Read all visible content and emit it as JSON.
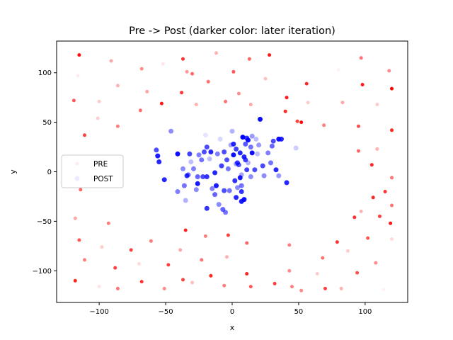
{
  "chart_data": {
    "type": "scatter",
    "title": "Pre -> Post (darker color: later iteration)",
    "xlabel": "x",
    "ylabel": "y",
    "xlim": [
      -132,
      132
    ],
    "ylim": [
      -132,
      132
    ],
    "xticks": [
      -100,
      -50,
      0,
      50,
      100
    ],
    "yticks": [
      -100,
      -50,
      0,
      50,
      100
    ],
    "xtick_labels": [
      "−100",
      "−50",
      "0",
      "50",
      "100"
    ],
    "ytick_labels": [
      "−100",
      "−50",
      "0",
      "50",
      "100"
    ],
    "grid": false,
    "legend": {
      "placement": "center-left"
    },
    "colors": {
      "pre": "#ff0000",
      "post": "#0000ff"
    },
    "series": [
      {
        "name": "PRE",
        "color": "#ff0000",
        "points": [
          [
            -115,
            118,
            0.95
          ],
          [
            -116,
            97,
            0.08
          ],
          [
            -91,
            112,
            0.35
          ],
          [
            -68,
            104,
            0.45
          ],
          [
            -52,
            109,
            0.1
          ],
          [
            -37,
            114,
            0.8
          ],
          [
            -30,
            99,
            0.6
          ],
          [
            -12,
            120,
            0.3
          ],
          [
            1,
            101,
            0.65
          ],
          [
            13,
            114,
            0.6
          ],
          [
            28,
            118,
            0.9
          ],
          [
            25,
            94,
            0.25
          ],
          [
            80,
            103,
            0.05
          ],
          [
            97,
            115,
            0.55
          ],
          [
            118,
            102,
            0.45
          ],
          [
            -86,
            87,
            0.3
          ],
          [
            -64,
            81,
            0.35
          ],
          [
            -38,
            80,
            0.8
          ],
          [
            -18,
            91,
            0.55
          ],
          [
            5,
            79,
            0.45
          ],
          [
            56,
            89,
            0.85
          ],
          [
            98,
            88,
            0.9
          ],
          [
            120,
            84,
            1.0
          ],
          [
            -119,
            72,
            0.65
          ],
          [
            -101,
            54,
            0.2
          ],
          [
            -69,
            62,
            0.55
          ],
          [
            -53,
            69,
            0.9
          ],
          [
            -27,
            68,
            0.3
          ],
          [
            -5,
            71,
            0.55
          ],
          [
            14,
            68,
            0.35
          ],
          [
            41,
            75,
            0.9
          ],
          [
            57,
            70,
            0.2
          ],
          [
            83,
            70,
            0.35
          ],
          [
            109,
            68,
            0.2
          ],
          [
            -111,
            37,
            0.75
          ],
          [
            -86,
            46,
            0.5
          ],
          [
            40,
            61,
            0.85
          ],
          [
            52,
            50,
            0.95
          ],
          [
            69,
            47,
            0.5
          ],
          [
            95,
            46,
            0.7
          ],
          [
            120,
            42,
            0.85
          ],
          [
            -114,
            -18,
            0.6
          ],
          [
            95,
            21,
            0.6
          ],
          [
            109,
            23,
            0.3
          ],
          [
            105,
            7,
            0.85
          ],
          [
            120,
            -6,
            0.55
          ],
          [
            115,
            -20,
            0.8
          ],
          [
            106,
            -26,
            0.85
          ],
          [
            120,
            -34,
            0.55
          ],
          [
            97,
            -40,
            0.3
          ],
          [
            119,
            -52,
            0.9
          ],
          [
            92,
            -46,
            0.8
          ],
          [
            111,
            -45,
            0.75
          ],
          [
            -118,
            -47,
            0.35
          ],
          [
            -115,
            -69,
            0.65
          ],
          [
            -93,
            -52,
            0.5
          ],
          [
            -35,
            -59,
            0.85
          ],
          [
            -20,
            -65,
            0.5
          ],
          [
            -3,
            -64,
            0.75
          ],
          [
            43,
            -74,
            0.5
          ],
          [
            79,
            -71,
            0.8
          ],
          [
            102,
            -67,
            0.65
          ],
          [
            120,
            -68,
            0.15
          ],
          [
            -111,
            -89,
            0.5
          ],
          [
            -98,
            -76,
            0.2
          ],
          [
            -76,
            -79,
            0.75
          ],
          [
            -61,
            -70,
            0.5
          ],
          [
            -39,
            -79,
            0.35
          ],
          [
            -23,
            -89,
            0.55
          ],
          [
            -4,
            -86,
            0.3
          ],
          [
            11,
            -72,
            0.6
          ],
          [
            68,
            -87,
            0.55
          ],
          [
            87,
            -80,
            0.2
          ],
          [
            -88,
            -97,
            0.75
          ],
          [
            -70,
            -93,
            0.15
          ],
          [
            -48,
            -94,
            0.75
          ],
          [
            -37,
            -109,
            0.75
          ],
          [
            -16,
            -105,
            0.85
          ],
          [
            -6,
            -115,
            0.5
          ],
          [
            11,
            -103,
            0.85
          ],
          [
            32,
            -113,
            0.75
          ],
          [
            43,
            -100,
            0.45
          ],
          [
            64,
            -103,
            0.2
          ],
          [
            94,
            -102,
            0.7
          ],
          [
            108,
            -92,
            0.45
          ],
          [
            -118,
            -110,
            0.85
          ],
          [
            -100,
            -116,
            0.1
          ],
          [
            -86,
            -118,
            0.55
          ],
          [
            -68,
            -111,
            0.8
          ],
          [
            -51,
            -118,
            0.45
          ],
          [
            -30,
            -112,
            0.25
          ],
          [
            14,
            -116,
            0.65
          ],
          [
            45,
            -116,
            0.5
          ],
          [
            52,
            -120,
            0.45
          ],
          [
            70,
            -118,
            0.75
          ],
          [
            82,
            -118,
            0.3
          ],
          [
            114,
            -119,
            0.05
          ],
          [
            49,
            51,
            0.75
          ],
          [
            -100,
            71,
            0.2
          ],
          [
            -34,
            101,
            0.4
          ]
        ]
      },
      {
        "name": "POST",
        "color": "#0000ff",
        "points": [
          [
            -57,
            22,
            0.7
          ],
          [
            -56,
            16,
            0.9
          ],
          [
            -55,
            10,
            0.85
          ],
          [
            -51,
            -8,
            0.85
          ],
          [
            -46,
            41,
            0.45
          ],
          [
            -41,
            18,
            0.95
          ],
          [
            -41,
            -20,
            0.5
          ],
          [
            -37,
            3,
            0.45
          ],
          [
            -36,
            -14,
            0.55
          ],
          [
            -35,
            -29,
            0.3
          ],
          [
            -34,
            -4,
            0.8
          ],
          [
            -33,
            -3,
            0.55
          ],
          [
            -32,
            18,
            0.75
          ],
          [
            -31,
            10,
            0.25
          ],
          [
            -29,
            3,
            0.5
          ],
          [
            -27,
            -18,
            0.45
          ],
          [
            -26,
            -12,
            0.9
          ],
          [
            -25,
            17,
            0.5
          ],
          [
            -23,
            12,
            0.55
          ],
          [
            -22,
            -5,
            0.7
          ],
          [
            -21,
            20,
            0.7
          ],
          [
            -20,
            37,
            0.1
          ],
          [
            -19,
            -37,
            0.8
          ],
          [
            -19,
            25,
            0.7
          ],
          [
            -19,
            -5,
            0.8
          ],
          [
            -17,
            13,
            0.25
          ],
          [
            -16,
            20,
            0.85
          ],
          [
            -15,
            -17,
            0.5
          ],
          [
            -13,
            -1,
            0.85
          ],
          [
            -12,
            -14,
            0.9
          ],
          [
            -11,
            18,
            0.5
          ],
          [
            -10,
            -33,
            0.45
          ],
          [
            -9,
            33,
            0.15
          ],
          [
            -8,
            6,
            0.75
          ],
          [
            -7,
            -38,
            0.6
          ],
          [
            -6,
            -19,
            0.7
          ],
          [
            -6,
            20,
            0.7
          ],
          [
            -5,
            -41,
            0.55
          ],
          [
            -4,
            12,
            0.7
          ],
          [
            -3,
            3,
            0.55
          ],
          [
            -2,
            -19,
            0.55
          ],
          [
            -1,
            27,
            0.35
          ],
          [
            0,
            41,
            0.3
          ],
          [
            1,
            17,
            0.95
          ],
          [
            1,
            28,
            0.85
          ],
          [
            2,
            -9,
            0.8
          ],
          [
            3,
            -26,
            0.85
          ],
          [
            3,
            23,
            0.75
          ],
          [
            4,
            -16,
            0.45
          ],
          [
            4,
            9,
            0.75
          ],
          [
            5,
            7,
            0.65
          ],
          [
            6,
            19,
            0.85
          ],
          [
            6,
            -6,
            0.9
          ],
          [
            7,
            -3,
            0.35
          ],
          [
            7,
            -14,
            0.55
          ],
          [
            7,
            -20,
            0.8
          ],
          [
            7,
            -30,
            0.9
          ],
          [
            8,
            35,
            1.0
          ],
          [
            9,
            -28,
            0.95
          ],
          [
            9,
            15,
            0.85
          ],
          [
            10,
            28,
            0.65
          ],
          [
            10,
            12,
            0.75
          ],
          [
            11,
            2,
            0.75
          ],
          [
            11,
            34,
            0.8
          ],
          [
            12,
            32,
            0.95
          ],
          [
            12,
            9,
            0.3
          ],
          [
            14,
            25,
            0.55
          ],
          [
            14,
            -5,
            0.45
          ],
          [
            15,
            19,
            0.95
          ],
          [
            15,
            36,
            0.4
          ],
          [
            17,
            2,
            0.7
          ],
          [
            18,
            33,
            0.25
          ],
          [
            19,
            18,
            0.25
          ],
          [
            20,
            27,
            0.4
          ],
          [
            21,
            53,
            0.95
          ],
          [
            23,
            6,
            0.7
          ],
          [
            24,
            -4,
            0.45
          ],
          [
            27,
            19,
            0.5
          ],
          [
            29,
            9,
            0.55
          ],
          [
            30,
            26,
            0.6
          ],
          [
            31,
            31,
            0.7
          ],
          [
            33,
            2,
            0.85
          ],
          [
            35,
            -4,
            0.4
          ],
          [
            35,
            33,
            0.95
          ],
          [
            37,
            33,
            0.85
          ],
          [
            41,
            -11,
            0.85
          ],
          [
            48,
            24,
            0.2
          ],
          [
            -13,
            -23,
            0.6
          ],
          [
            -26,
            -5,
            0.6
          ],
          [
            3,
            8,
            0.4
          ]
        ]
      }
    ]
  }
}
